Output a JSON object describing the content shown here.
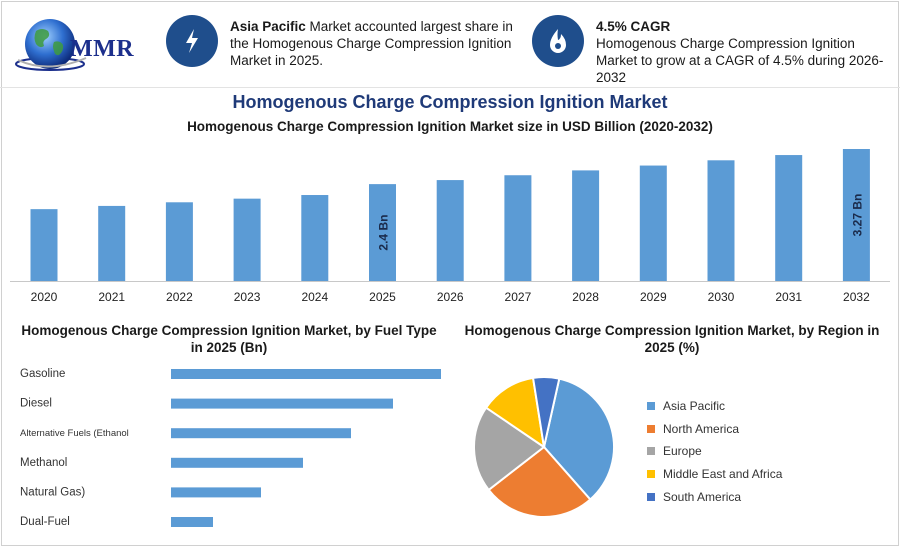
{
  "header": {
    "logo_text": "MMR",
    "highlight1": {
      "bold": "Asia Pacific",
      "text": " Market accounted largest share in the Homogenous Charge Compression Ignition Market in 2025.",
      "icon": "lightning-icon"
    },
    "highlight2": {
      "bold": "4.5% CAGR",
      "text": "Homogenous Charge Compression Ignition Market to grow at a CAGR of 4.5% during 2026-2032",
      "icon": "flame-icon"
    }
  },
  "title": "Homogenous Charge Compression Ignition Market",
  "colors": {
    "bar": "#5b9bd5",
    "title": "#1f3a78",
    "icon_bg": "#1f4e8c"
  },
  "chart_data": [
    {
      "type": "bar",
      "title": "Homogenous Charge Compression Ignition Market size in USD Billion (2020-2032)",
      "categories": [
        "2020",
        "2021",
        "2022",
        "2023",
        "2024",
        "2025",
        "2026",
        "2027",
        "2028",
        "2029",
        "2030",
        "2031",
        "2032"
      ],
      "values": [
        1.78,
        1.86,
        1.95,
        2.04,
        2.13,
        2.4,
        2.5,
        2.62,
        2.74,
        2.86,
        2.99,
        3.12,
        3.27
      ],
      "data_labels": [
        {
          "category": "2025",
          "text": "2.4 Bn"
        },
        {
          "category": "2032",
          "text": "3.27 Bn"
        }
      ],
      "ylim": [
        0,
        3.27
      ],
      "xlabel": "",
      "ylabel": ""
    },
    {
      "type": "bar",
      "orientation": "horizontal",
      "title": "Homogenous Charge Compression Ignition Market, by Fuel Type in 2025 (Bn)",
      "categories": [
        "Gasoline",
        "Diesel",
        "Alternative Fuels (Ethanol",
        "Methanol",
        "Natural Gas)",
        "Dual-Fuel"
      ],
      "values": [
        0.9,
        0.74,
        0.6,
        0.44,
        0.3,
        0.14
      ],
      "xlim": [
        0,
        0.9
      ]
    },
    {
      "type": "pie",
      "title": "Homogenous Charge Compression Ignition Market, by Region in 2025 (%)",
      "labels": [
        "Asia Pacific",
        "North America",
        "Europe",
        "Middle East and Africa",
        "South America"
      ],
      "values": [
        35,
        26,
        20,
        13,
        6
      ],
      "colors": [
        "#5b9bd5",
        "#ed7d31",
        "#a5a5a5",
        "#ffc000",
        "#4472c4"
      ]
    }
  ]
}
